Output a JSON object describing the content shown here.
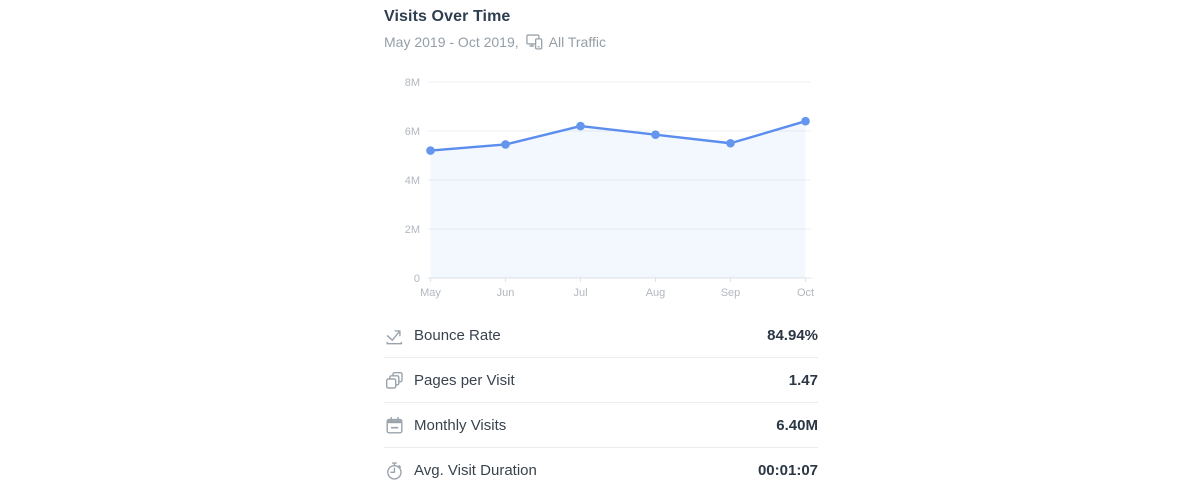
{
  "widget": {
    "title": "Visits Over Time",
    "date_range": "May 2019 - Oct 2019,",
    "traffic_filter": "All Traffic"
  },
  "chart_data": {
    "type": "line",
    "title": "Visits Over Time",
    "x": [
      "May",
      "Jun",
      "Jul",
      "Aug",
      "Sep",
      "Oct"
    ],
    "series": [
      {
        "name": "Visits",
        "unit": "M",
        "values": [
          5.2,
          5.45,
          6.2,
          5.85,
          5.5,
          6.4
        ]
      }
    ],
    "ylim": [
      0,
      8
    ],
    "ytick_values": [
      0,
      2,
      4,
      6,
      8
    ],
    "ytick_labels": [
      "0",
      "2M",
      "4M",
      "6M",
      "8M"
    ],
    "grid": true,
    "legend": false,
    "line_color": "#5b8def",
    "dot_color": "#6496ee",
    "fill_color": "rgba(101,149,239,0.08)",
    "grid_color": "#edeff1",
    "axis_color": "#dfe3e6",
    "tick_label_color": "#b2b8bf"
  },
  "stats": {
    "rows": [
      {
        "icon": "bounce-rate-icon",
        "label": "Bounce Rate",
        "value": "84.94%"
      },
      {
        "icon": "pages-per-visit-icon",
        "label": "Pages per Visit",
        "value": "1.47"
      },
      {
        "icon": "monthly-visits-icon",
        "label": "Monthly Visits",
        "value": "6.40M"
      },
      {
        "icon": "visit-duration-icon",
        "label": "Avg. Visit Duration",
        "value": "00:01:07"
      }
    ]
  }
}
